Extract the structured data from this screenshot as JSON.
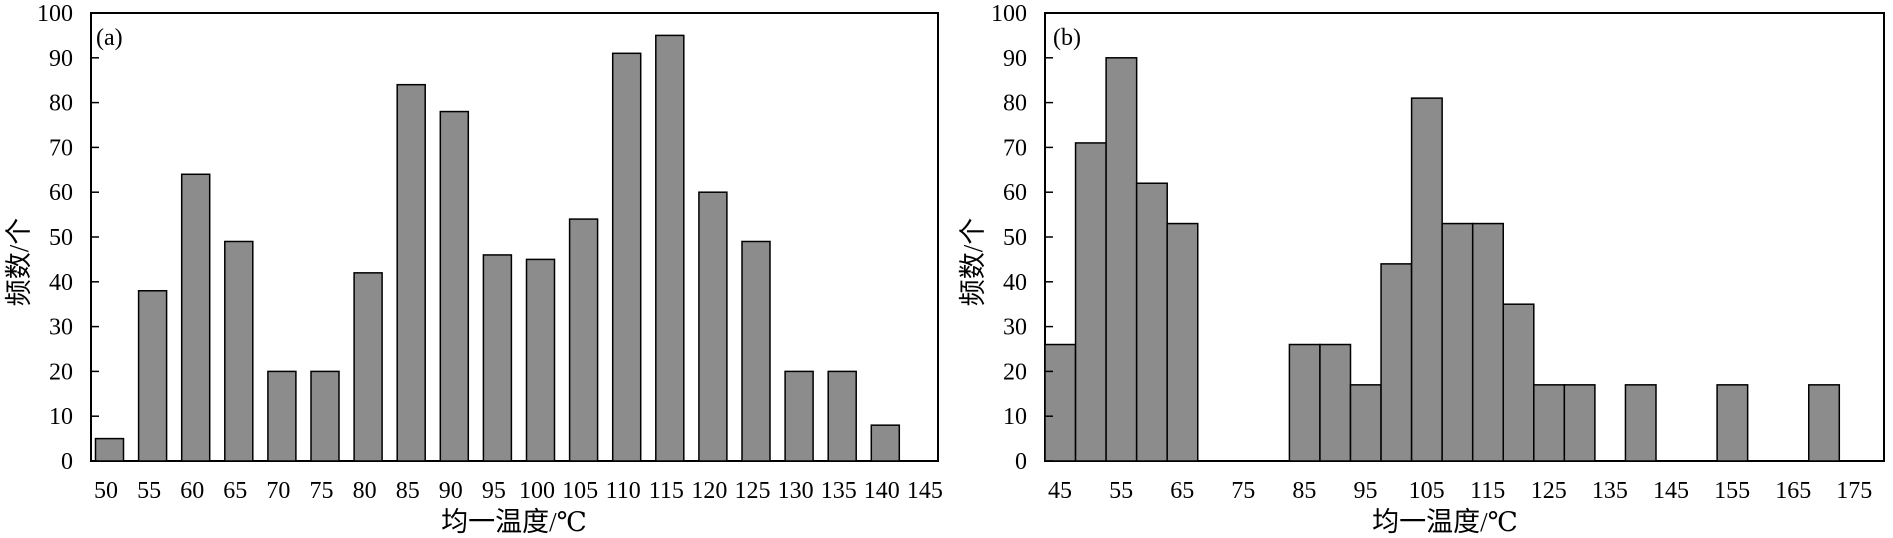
{
  "chart_data": [
    {
      "type": "bar",
      "panel_label": "(a)",
      "title": "",
      "xlabel": "均一温度/℃",
      "ylabel": "频数/个",
      "ylim": [
        0,
        100
      ],
      "xlim": [
        50,
        145
      ],
      "yticks": [
        0,
        10,
        20,
        30,
        40,
        50,
        60,
        70,
        80,
        90,
        100
      ],
      "xticks": [
        50,
        55,
        60,
        65,
        70,
        75,
        80,
        85,
        90,
        95,
        100,
        105,
        110,
        115,
        120,
        125,
        130,
        135,
        140,
        145
      ],
      "categories": [
        50,
        55,
        60,
        65,
        70,
        75,
        80,
        85,
        90,
        95,
        100,
        105,
        110,
        115,
        120,
        125,
        130,
        135,
        140
      ],
      "values": [
        5,
        38,
        64,
        49,
        20,
        20,
        42,
        84,
        78,
        46,
        45,
        54,
        91,
        95,
        60,
        49,
        20,
        20,
        8
      ],
      "grid": false,
      "legend": "none",
      "bar_color": "#8c8c8c"
    },
    {
      "type": "bar",
      "panel_label": "(b)",
      "title": "",
      "xlabel": "均一温度/℃",
      "ylabel": "频数/个",
      "ylim": [
        0,
        100
      ],
      "xlim": [
        45,
        180
      ],
      "yticks": [
        0,
        10,
        20,
        30,
        40,
        50,
        60,
        70,
        80,
        90,
        100
      ],
      "xticks": [
        45,
        55,
        65,
        75,
        85,
        95,
        105,
        115,
        125,
        135,
        145,
        155,
        165,
        175
      ],
      "bins": [
        {
          "from": 45,
          "to": 50,
          "value": 26
        },
        {
          "from": 50,
          "to": 55,
          "value": 71
        },
        {
          "from": 55,
          "to": 60,
          "value": 90
        },
        {
          "from": 60,
          "to": 65,
          "value": 62
        },
        {
          "from": 65,
          "to": 70,
          "value": 53
        },
        {
          "from": 85,
          "to": 90,
          "value": 26
        },
        {
          "from": 90,
          "to": 95,
          "value": 26
        },
        {
          "from": 95,
          "to": 100,
          "value": 17
        },
        {
          "from": 100,
          "to": 105,
          "value": 44
        },
        {
          "from": 105,
          "to": 110,
          "value": 81
        },
        {
          "from": 110,
          "to": 115,
          "value": 53
        },
        {
          "from": 115,
          "to": 120,
          "value": 53
        },
        {
          "from": 120,
          "to": 125,
          "value": 35
        },
        {
          "from": 125,
          "to": 130,
          "value": 17
        },
        {
          "from": 130,
          "to": 135,
          "value": 17
        },
        {
          "from": 140,
          "to": 145,
          "value": 17
        },
        {
          "from": 155,
          "to": 160,
          "value": 17
        },
        {
          "from": 170,
          "to": 175,
          "value": 17
        }
      ],
      "grid": false,
      "legend": "none",
      "bar_color": "#8c8c8c"
    }
  ]
}
